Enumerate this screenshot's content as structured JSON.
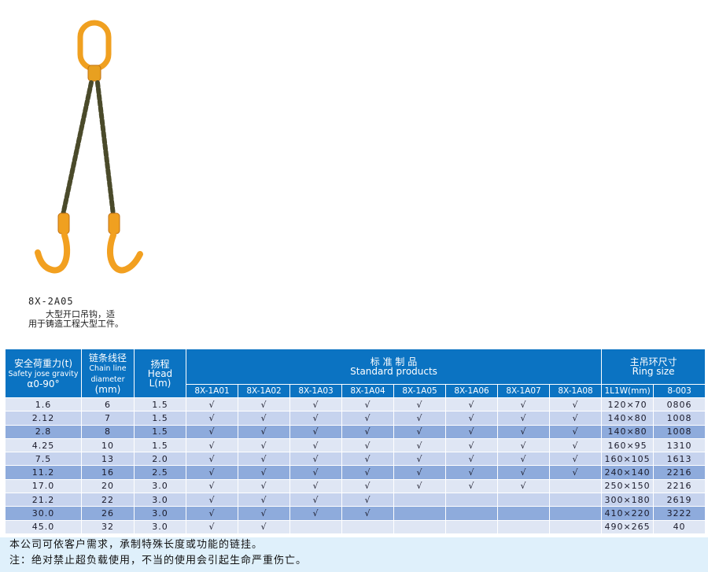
{
  "product": {
    "code": "8X-2A05",
    "description_line1": "大型开口吊钩，适",
    "description_line2": "用于铸造工程大型工件。"
  },
  "table": {
    "headers": {
      "load": {
        "cn": "安全荷重力(t)",
        "en": "Safety jose gravity",
        "sub": "α0-90°"
      },
      "chain": {
        "cn": "链条线径",
        "en": "Chain line diameter",
        "sub": "(mm)"
      },
      "head": {
        "cn": "扬程",
        "en": "Head",
        "sub": "L(m)"
      },
      "standard": {
        "cn": "标 准 制 品",
        "en": "Standard products"
      },
      "ring": {
        "cn": "主吊环尺寸",
        "en": "Ring size"
      }
    },
    "product_columns": [
      "8X-1A01",
      "8X-1A02",
      "8X-1A03",
      "8X-1A04",
      "8X-1A05",
      "8X-1A06",
      "8X-1A07",
      "8X-1A08"
    ],
    "ring_columns": [
      "1L1W(mm)",
      "8-003"
    ],
    "check_mark": "√",
    "rows": [
      {
        "load": "1.6",
        "chain": "6",
        "head": "1.5",
        "products": [
          1,
          1,
          1,
          1,
          1,
          1,
          1,
          1
        ],
        "ring_size": "120×70",
        "ring_code": "0806"
      },
      {
        "load": "2.12",
        "chain": "7",
        "head": "1.5",
        "products": [
          1,
          1,
          1,
          1,
          1,
          1,
          1,
          1
        ],
        "ring_size": "140×80",
        "ring_code": "1008"
      },
      {
        "load": "2.8",
        "chain": "8",
        "head": "1.5",
        "products": [
          1,
          1,
          1,
          1,
          1,
          1,
          1,
          1
        ],
        "ring_size": "140×80",
        "ring_code": "1008"
      },
      {
        "load": "4.25",
        "chain": "10",
        "head": "1.5",
        "products": [
          1,
          1,
          1,
          1,
          1,
          1,
          1,
          1
        ],
        "ring_size": "160×95",
        "ring_code": "1310"
      },
      {
        "load": "7.5",
        "chain": "13",
        "head": "2.0",
        "products": [
          1,
          1,
          1,
          1,
          1,
          1,
          1,
          1
        ],
        "ring_size": "160×105",
        "ring_code": "1613"
      },
      {
        "load": "11.2",
        "chain": "16",
        "head": "2.5",
        "products": [
          1,
          1,
          1,
          1,
          1,
          1,
          1,
          1
        ],
        "ring_size": "240×140",
        "ring_code": "2216"
      },
      {
        "load": "17.0",
        "chain": "20",
        "head": "3.0",
        "products": [
          1,
          1,
          1,
          1,
          1,
          1,
          1,
          0
        ],
        "ring_size": "250×150",
        "ring_code": "2216"
      },
      {
        "load": "21.2",
        "chain": "22",
        "head": "3.0",
        "products": [
          1,
          1,
          1,
          1,
          0,
          0,
          0,
          0
        ],
        "ring_size": "300×180",
        "ring_code": "2619"
      },
      {
        "load": "30.0",
        "chain": "26",
        "head": "3.0",
        "products": [
          1,
          1,
          1,
          1,
          0,
          0,
          0,
          0
        ],
        "ring_size": "410×220",
        "ring_code": "3222"
      },
      {
        "load": "45.0",
        "chain": "32",
        "head": "3.0",
        "products": [
          1,
          1,
          0,
          0,
          0,
          0,
          0,
          0
        ],
        "ring_size": "490×265",
        "ring_code": "40"
      }
    ]
  },
  "footer": {
    "line1": "本公司可依客户需求，承制特殊长度或功能的链挂。",
    "line2": "注：绝对禁止超负载使用，不当的使用会引起生命严重伤亡。"
  },
  "colors": {
    "header": "#0b73c2",
    "row_light": "#dfe6f4",
    "row_mid": "#c6d3ee",
    "row_dark": "#8eabdc",
    "footer_bg": "#dff0fb",
    "hook": "#f5a623"
  }
}
